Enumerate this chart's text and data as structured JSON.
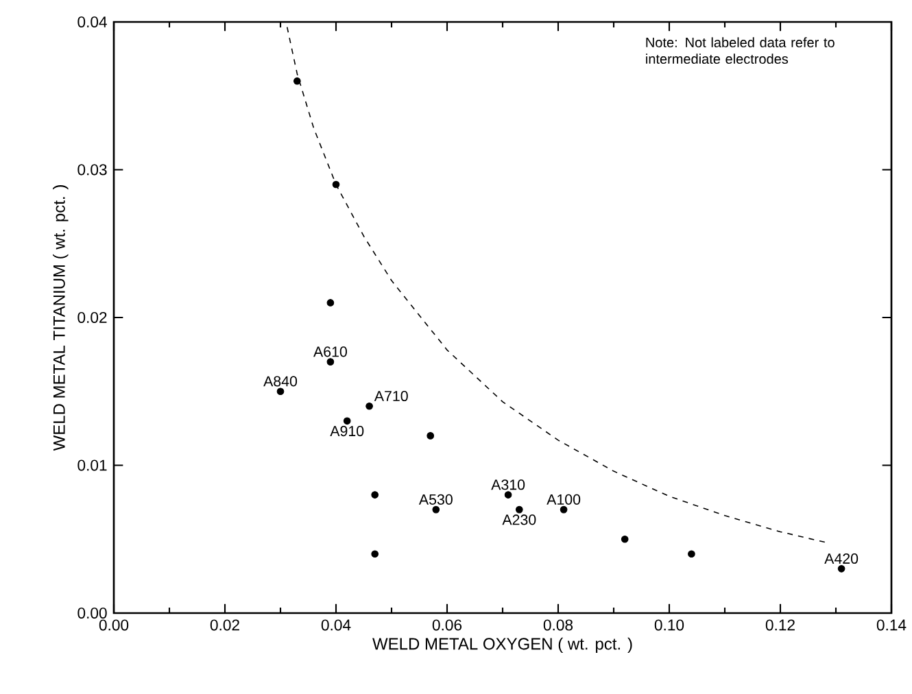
{
  "chart_data": {
    "type": "scatter",
    "xlabel": "WELD METAL OXYGEN ( wt. pct. )",
    "ylabel": "WELD METAL TITANIUM ( wt. pct. )",
    "xlim": [
      0,
      0.14
    ],
    "xticks": [
      {
        "value": 0,
        "label": "0.00"
      },
      {
        "value": 0.02,
        "label": "0.02"
      },
      {
        "value": 0.04,
        "label": "0.04"
      },
      {
        "value": 0.06,
        "label": "0.06"
      },
      {
        "value": 0.08,
        "label": "0.08"
      },
      {
        "value": 0.1,
        "label": "0.10"
      },
      {
        "value": 0.12,
        "label": "0.12"
      },
      {
        "value": 0.14,
        "label": "0.14"
      }
    ],
    "ylim": [
      0,
      0.04
    ],
    "yticks": [
      {
        "value": 0,
        "label": "0.00"
      },
      {
        "value": 0.01,
        "label": "0.01"
      },
      {
        "value": 0.02,
        "label": "0.02"
      },
      {
        "value": 0.03,
        "label": "0.03"
      },
      {
        "value": 0.04,
        "label": "0.04"
      }
    ],
    "grid": false,
    "series": [
      {
        "color": "#000000",
        "marker": "circle",
        "x": [
          0.033,
          0.04,
          0.039,
          0.039,
          0.03,
          0.042,
          0.046,
          0.057,
          0.047,
          0.058,
          0.047,
          0.071,
          0.073,
          0.081,
          0.092,
          0.104,
          0.131
        ],
        "values": [
          0.036,
          0.029,
          0.021,
          0.017,
          0.015,
          0.013,
          0.014,
          0.012,
          0.008,
          0.007,
          0.004,
          0.008,
          0.007,
          0.007,
          0.005,
          0.004,
          0.003
        ]
      },
      {
        "type": "line",
        "color": "#000000",
        "line_style": "dashed",
        "marker": "none",
        "x": [
          0.031,
          0.033,
          0.036,
          0.04,
          0.045,
          0.05,
          0.06,
          0.07,
          0.08,
          0.09,
          0.1,
          0.11,
          0.12,
          0.128
        ],
        "values": [
          0.04,
          0.0365,
          0.0328,
          0.029,
          0.0255,
          0.0225,
          0.0178,
          0.0143,
          0.0117,
          0.0096,
          0.0079,
          0.0066,
          0.0055,
          0.0048
        ]
      }
    ],
    "annotations": [
      {
        "text": "A610",
        "x": 0.039,
        "y": 0.017
      },
      {
        "text": "A840",
        "x": 0.03,
        "y": 0.015
      },
      {
        "text": "A710",
        "x": 0.046,
        "y": 0.014
      },
      {
        "text": "A910",
        "x": 0.042,
        "y": 0.013
      },
      {
        "text": "A530",
        "x": 0.058,
        "y": 0.007
      },
      {
        "text": "A310",
        "x": 0.071,
        "y": 0.008
      },
      {
        "text": "A230",
        "x": 0.073,
        "y": 0.007
      },
      {
        "text": "A100",
        "x": 0.081,
        "y": 0.007
      },
      {
        "text": "A420",
        "x": 0.131,
        "y": 0.003
      },
      "Note: Not labeled data refer to intermediate electrodes"
    ]
  }
}
